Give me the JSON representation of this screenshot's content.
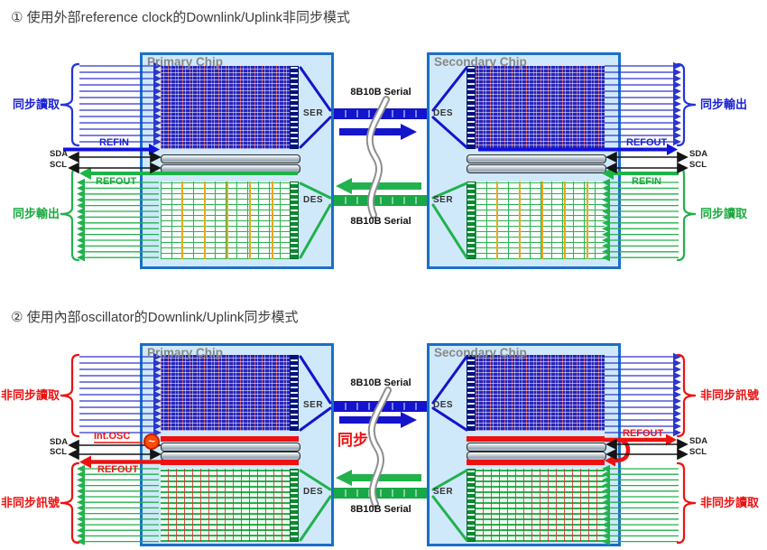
{
  "d1": {
    "title": "① 使用外部reference clock的Downlink/Uplink非同步模式",
    "primary_name": "Primary Chip",
    "secondary_name": "Secondary Chip",
    "ser": "SER",
    "des": "DES",
    "serial_label": "8B10B Serial",
    "left_in_label": "同步讀取",
    "left_out_label": "同步輸出",
    "right_out_label": "同步輸出",
    "right_in_label": "同步讀取",
    "refin": "REFIN",
    "refout": "REFOUT",
    "sda": "SDA",
    "scl": "SCL"
  },
  "d2": {
    "title": "② 使用內部oscillator的Downlink/Uplink同步模式",
    "primary_name": "Primary Chip",
    "secondary_name": "Secondary Chip",
    "ser": "SER",
    "des": "DES",
    "serial_label": "8B10B Serial",
    "sync_label": "同步",
    "int_osc": "Int.OSC",
    "osc_glyph": "~",
    "left_in_label": "非同步讀取",
    "left_out_label": "非同步訊號",
    "right_out_label": "非同步訊號",
    "right_in_label": "非同步讀取",
    "refout": "REFOUT",
    "sda": "SDA",
    "scl": "SCL"
  },
  "colors": {
    "chip_fill": "#cfe9fb",
    "chip_border": "#1a6fc8",
    "downlink_blue": "#1414cc",
    "uplink_green": "#22b14c",
    "sync_red": "#ee1111",
    "bus_black": "#151515",
    "title_gray": "#3d3d3d"
  }
}
